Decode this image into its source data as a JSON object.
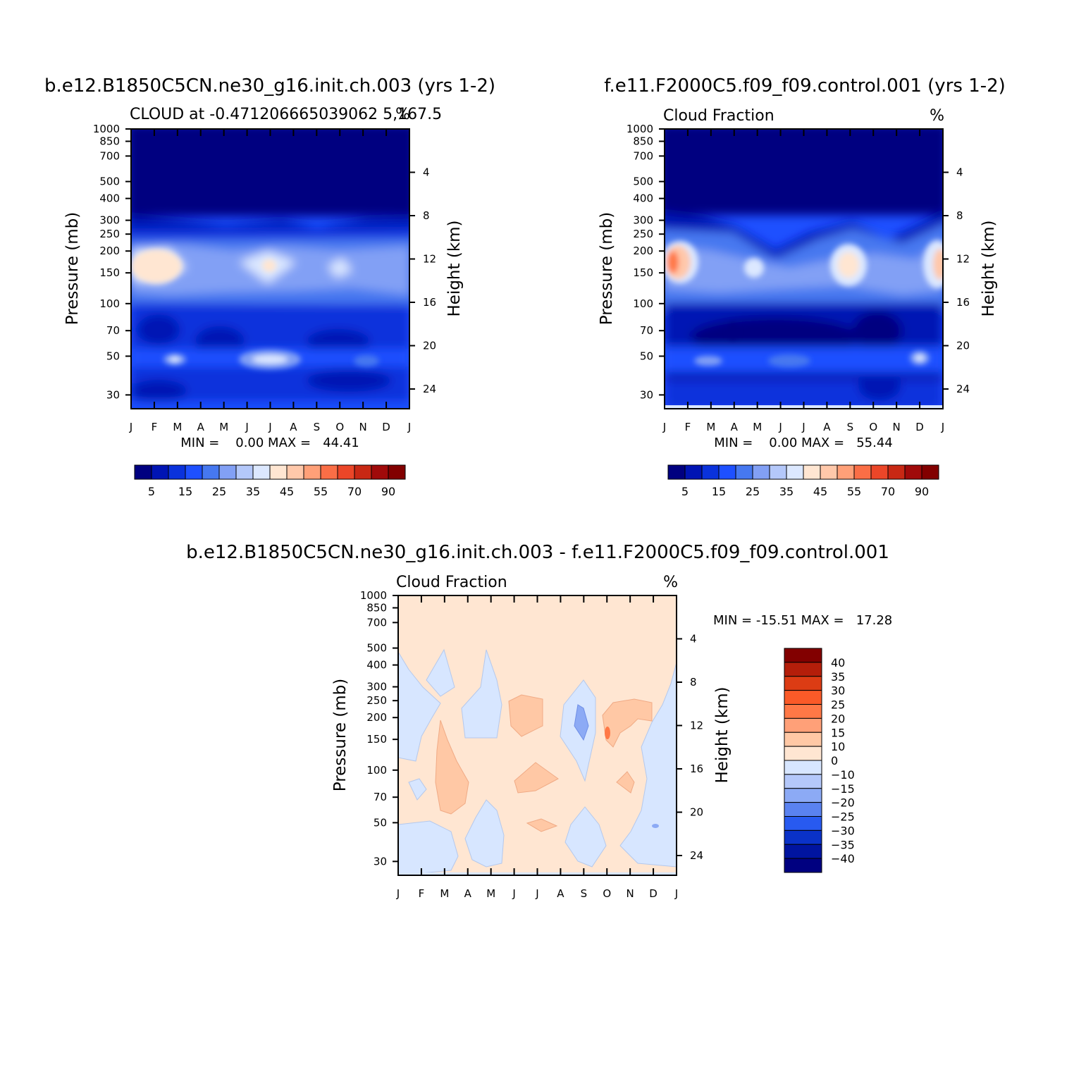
{
  "chart_data": [
    {
      "type": "heatmap",
      "title": "b.e12.B1850C5CN.ne30_g16.init.ch.003 (yrs 1-2)",
      "subtitle_left": "CLOUD at -0.471206665039062 5,167.5",
      "subtitle_right": "%",
      "ylabel": "Pressure (mb)",
      "y2label": "Height (km)",
      "x_ticks": [
        "J",
        "F",
        "M",
        "A",
        "M",
        "J",
        "J",
        "A",
        "S",
        "O",
        "N",
        "D",
        "J"
      ],
      "y_ticks": [
        30,
        50,
        70,
        100,
        150,
        200,
        250,
        300,
        400,
        500,
        700,
        850,
        1000
      ],
      "y2_ticks": [
        24,
        20,
        16,
        12,
        8,
        4
      ],
      "ylim": [
        1000,
        25
      ],
      "y_scale": "log",
      "minmax_text": "MIN =    0.00 MAX =   44.41",
      "min": 0.0,
      "max": 44.41,
      "colorbar_labels": [
        "5",
        "15",
        "25",
        "35",
        "45",
        "55",
        "70",
        "90"
      ],
      "colorbar_orientation": "horizontal",
      "colorbar_colors": [
        "#000080",
        "#0014b4",
        "#0a32dc",
        "#1e50ff",
        "#4678f0",
        "#82a0f5",
        "#b4c8fa",
        "#dce8ff",
        "#ffe6d2",
        "#ffc8aa",
        "#ffa078",
        "#fa6e46",
        "#eb4628",
        "#c82814",
        "#a00a0a",
        "#820000"
      ]
    },
    {
      "type": "heatmap",
      "title": "f.e11.F2000C5.f09_f09.control.001 (yrs 1-2)",
      "subtitle_left": "Cloud Fraction",
      "subtitle_right": "%",
      "ylabel": "Pressure (mb)",
      "y2label": "Height (km)",
      "x_ticks": [
        "J",
        "F",
        "M",
        "A",
        "M",
        "J",
        "J",
        "A",
        "S",
        "O",
        "N",
        "D",
        "J"
      ],
      "y_ticks": [
        30,
        50,
        70,
        100,
        150,
        200,
        250,
        300,
        400,
        500,
        700,
        850,
        1000
      ],
      "y2_ticks": [
        24,
        20,
        16,
        12,
        8,
        4
      ],
      "ylim": [
        1000,
        25
      ],
      "y_scale": "log",
      "minmax_text": "MIN =    0.00 MAX =   55.44",
      "min": 0.0,
      "max": 55.44,
      "colorbar_labels": [
        "5",
        "15",
        "25",
        "35",
        "45",
        "55",
        "70",
        "90"
      ],
      "colorbar_orientation": "horizontal"
    },
    {
      "type": "heatmap",
      "title": "b.e12.B1850C5CN.ne30_g16.init.ch.003 - f.e11.F2000C5.f09_f09.control.001",
      "subtitle_left": "Cloud Fraction",
      "subtitle_right": "%",
      "ylabel": "Pressure (mb)",
      "y2label": "Height (km)",
      "x_ticks": [
        "J",
        "F",
        "M",
        "A",
        "M",
        "J",
        "J",
        "A",
        "S",
        "O",
        "N",
        "D",
        "J"
      ],
      "y_ticks": [
        30,
        50,
        70,
        100,
        150,
        200,
        250,
        300,
        400,
        500,
        700,
        850,
        1000
      ],
      "y2_ticks": [
        24,
        20,
        16,
        12,
        8,
        4
      ],
      "ylim": [
        1000,
        25
      ],
      "y_scale": "log",
      "minmax_text": "MIN = -15.51 MAX =   17.28",
      "min": -15.51,
      "max": 17.28,
      "colorbar_labels": [
        "40",
        "35",
        "30",
        "25",
        "20",
        "15",
        "10",
        "0",
        "-10",
        "-15",
        "-20",
        "-25",
        "-30",
        "-35",
        "-40"
      ],
      "colorbar_orientation": "vertical",
      "colorbar_colors": [
        "#820000",
        "#b41e0a",
        "#dc3c14",
        "#fa5a28",
        "#ff7846",
        "#ffa078",
        "#ffc8a5",
        "#ffe6d2",
        "#d7e6ff",
        "#b4c8fa",
        "#8caaf5",
        "#5a82f0",
        "#285af0",
        "#0a32c8",
        "#0014a0",
        "#000080"
      ]
    }
  ]
}
